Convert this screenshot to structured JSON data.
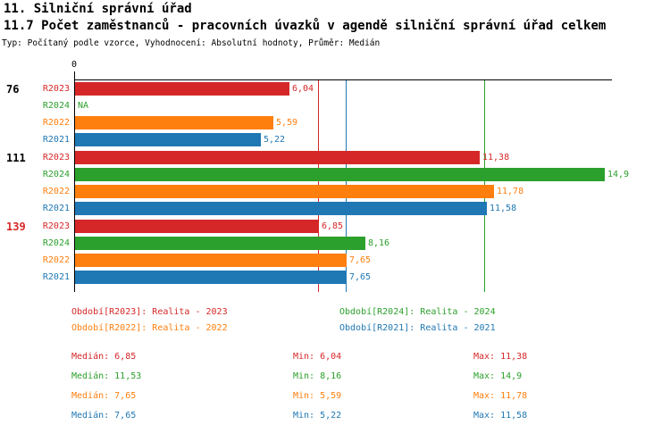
{
  "header": {
    "title": "11. Silniční správní úřad",
    "subtitle": "11.7 Počet zaměstnanců - pracovních úvazků v agendě silniční správní úřad celkem",
    "meta": "Typ: Počítaný podle vzorce, Vyhodnocení: Absolutní hodnoty, Průměr: Medián"
  },
  "palette": {
    "R2023": "#d62728",
    "R2024": "#2ca02c",
    "R2022": "#ff7f0e",
    "R2021": "#1f77b4",
    "axis": "#000000",
    "group_label_default": "#000000",
    "group_label_highlight": "#d62728"
  },
  "chart_data": {
    "type": "bar",
    "orientation": "horizontal",
    "origin_tick_label": "0",
    "xlim": [
      0,
      15.13
    ],
    "grid": false,
    "series_order": [
      "R2023",
      "R2024",
      "R2022",
      "R2021"
    ],
    "groups": [
      {
        "label": "76",
        "label_color_key": "group_label_default",
        "bars": [
          {
            "series": "R2023",
            "value": 6.04,
            "display": "6,04"
          },
          {
            "series": "R2024",
            "value": null,
            "display": "NA"
          },
          {
            "series": "R2022",
            "value": 5.59,
            "display": "5,59"
          },
          {
            "series": "R2021",
            "value": 5.22,
            "display": "5,22"
          }
        ]
      },
      {
        "label": "111",
        "label_color_key": "group_label_default",
        "bars": [
          {
            "series": "R2023",
            "value": 11.38,
            "display": "11,38"
          },
          {
            "series": "R2024",
            "value": 14.9,
            "display": "14,9"
          },
          {
            "series": "R2022",
            "value": 11.78,
            "display": "11,78"
          },
          {
            "series": "R2021",
            "value": 11.58,
            "display": "11,58"
          }
        ]
      },
      {
        "label": "139",
        "label_color_key": "group_label_highlight",
        "bars": [
          {
            "series": "R2023",
            "value": 6.85,
            "display": "6,85"
          },
          {
            "series": "R2024",
            "value": 8.16,
            "display": "8,16"
          },
          {
            "series": "R2022",
            "value": 7.65,
            "display": "7,65"
          },
          {
            "series": "R2021",
            "value": 7.65,
            "display": "7,65"
          }
        ]
      }
    ],
    "median_lines": [
      {
        "series": "R2023",
        "value": 6.85
      },
      {
        "series": "R2022",
        "value": 7.65
      },
      {
        "series": "R2021",
        "value": 7.65
      },
      {
        "series": "R2024",
        "value": 11.53
      }
    ]
  },
  "legend": {
    "items": [
      {
        "series": "R2023",
        "label": "Období[R2023]: Realita - 2023"
      },
      {
        "series": "R2024",
        "label": "Období[R2024]: Realita - 2024"
      },
      {
        "series": "R2022",
        "label": "Období[R2022]: Realita - 2022"
      },
      {
        "series": "R2021",
        "label": "Období[R2021]: Realita - 2021"
      }
    ]
  },
  "stats": {
    "labels": {
      "median": "Medián:",
      "min": "Min:",
      "max": "Max:"
    },
    "rows": [
      {
        "series": "R2023",
        "median": "6,85",
        "min": "6,04",
        "max": "11,38"
      },
      {
        "series": "R2024",
        "median": "11,53",
        "min": "8,16",
        "max": "14,9"
      },
      {
        "series": "R2022",
        "median": "7,65",
        "min": "5,59",
        "max": "11,78"
      },
      {
        "series": "R2021",
        "median": "7,65",
        "min": "5,22",
        "max": "11,58"
      }
    ]
  }
}
